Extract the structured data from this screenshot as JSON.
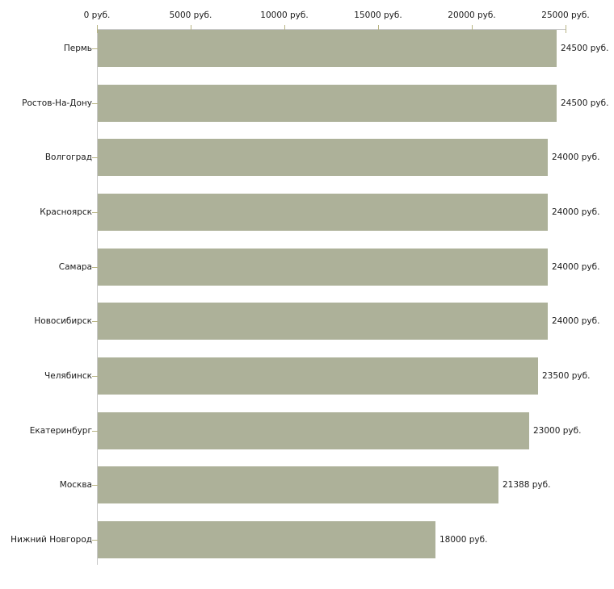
{
  "chart_data": {
    "type": "bar",
    "orientation": "horizontal",
    "title": "",
    "xlabel": "",
    "ylabel": "",
    "categories": [
      "Пермь",
      "Ростов-На-Дону",
      "Волгоград",
      "Красноярск",
      "Самара",
      "Новосибирск",
      "Челябинск",
      "Екатеринбург",
      "Москва",
      "Нижний Новгород"
    ],
    "values": [
      24500,
      24500,
      24000,
      24000,
      24000,
      24000,
      23500,
      23000,
      21388,
      18000
    ],
    "value_labels": [
      "24500 руб.",
      "24500 руб.",
      "24000 руб.",
      "24000 руб.",
      "24000 руб.",
      "24000 руб.",
      "23500 руб.",
      "23000 руб.",
      "21388 руб.",
      "18000 руб."
    ],
    "x_axis": {
      "position": "top",
      "range": [
        0,
        25000
      ],
      "ticks": [
        0,
        5000,
        10000,
        15000,
        20000,
        25000
      ],
      "tick_labels": [
        "0 руб.",
        "5000 руб.",
        "10000 руб.",
        "15000 руб.",
        "20000 руб.",
        "25000 руб."
      ]
    },
    "grid": false,
    "legend": false
  },
  "colors": {
    "bar": "#adb199",
    "axis_line": "#c9c9c9",
    "tick": "#b8b484",
    "text": "#1a1a1a",
    "background": "#ffffff"
  }
}
